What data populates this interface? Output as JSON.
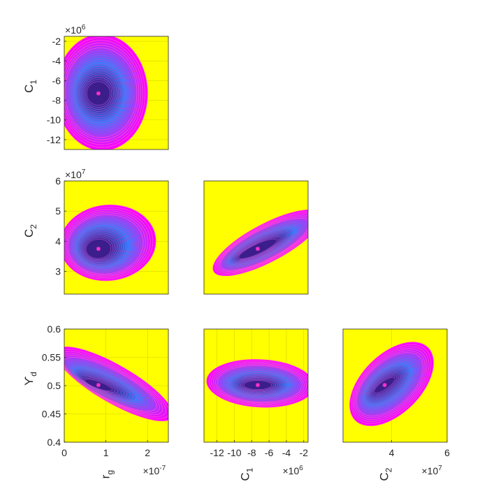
{
  "chart_data": {
    "type": "contour",
    "colors": {
      "background": "#ffff00",
      "outer": "#ff00ff",
      "inner": "#3b1e8c",
      "mid": "#3b7bff",
      "marker": "#ff33cc"
    },
    "variables": {
      "rg": {
        "base": "r",
        "sub": "g",
        "exp_base": "×10",
        "exp_pow": "-7"
      },
      "C1": {
        "base": "C",
        "sub": "1",
        "exp_base": "×10",
        "exp_pow": "6"
      },
      "C2": {
        "base": "C",
        "sub": "2",
        "exp_base": "×10",
        "exp_pow": "7"
      },
      "Yd": {
        "base": "ϒ",
        "sub": "d",
        "exp_base": "",
        "exp_pow": ""
      }
    },
    "panels": [
      {
        "row": 0,
        "col": 0,
        "xvar": "rg",
        "yvar": "C1",
        "xlim": [
          0,
          2.5
        ],
        "ylim": [
          -13,
          -1.5
        ],
        "xticks": [],
        "yticks": [
          -12,
          -10,
          -8,
          -6,
          -4,
          -2
        ],
        "show_xlabel": false,
        "show_ylabel": true,
        "show_xexp": false,
        "show_yexp": true,
        "best": [
          0.82,
          -7.3
        ],
        "region": {
          "cx": 0.9,
          "cy": -7.2,
          "rx": 1.1,
          "ry": 5.9,
          "rot": -2
        },
        "core": {
          "cx": 0.82,
          "cy": -7.3,
          "rx": 0.28,
          "ry": 1.2,
          "rot": 0
        }
      },
      {
        "row": 1,
        "col": 0,
        "xvar": "rg",
        "yvar": "C2",
        "xlim": [
          0,
          2.5
        ],
        "ylim": [
          22.5,
          60
        ],
        "xticks": [],
        "yticks": [
          30,
          40,
          50,
          60
        ],
        "yticklabels": [
          "3",
          "4",
          "5",
          "6"
        ],
        "show_xlabel": false,
        "show_ylabel": true,
        "show_xexp": false,
        "show_yexp": true,
        "best": [
          0.82,
          37.5
        ],
        "region": {
          "cx": 1.05,
          "cy": 39.5,
          "rx": 1.15,
          "ry": 12.5,
          "rot": -6
        },
        "core": {
          "cx": 0.82,
          "cy": 37.5,
          "rx": 0.3,
          "ry": 3.2,
          "rot": -5
        }
      },
      {
        "row": 1,
        "col": 1,
        "xvar": "C1",
        "yvar": "C2",
        "xlim": [
          -13.5,
          -1.5
        ],
        "ylim": [
          22.5,
          60
        ],
        "xticks": [],
        "yticks": [],
        "show_xlabel": false,
        "show_ylabel": false,
        "show_xexp": false,
        "show_yexp": false,
        "best": [
          -7.3,
          37.5
        ],
        "region": {
          "cx": -6.2,
          "cy": 39.5,
          "rx": 7.0,
          "ry": 6.2,
          "rot": -28
        },
        "core": {
          "cx": -7.3,
          "cy": 37.5,
          "rx": 2.4,
          "ry": 1.6,
          "rot": -25
        }
      },
      {
        "row": 2,
        "col": 0,
        "xvar": "rg",
        "yvar": "Yd",
        "xlim": [
          0,
          2.5
        ],
        "ylim": [
          0.4,
          0.6
        ],
        "xticks": [
          0,
          1,
          2
        ],
        "yticks": [
          0.4,
          0.45,
          0.5,
          0.55,
          0.6
        ],
        "yticklabels": [
          "0.4",
          "0.45",
          "0.5",
          "0.55",
          "0.6"
        ],
        "show_xlabel": true,
        "show_ylabel": true,
        "show_xexp": true,
        "show_yexp": false,
        "best": [
          0.82,
          0.501
        ],
        "region": {
          "cx": 1.2,
          "cy": 0.503,
          "rx": 1.6,
          "ry": 0.033,
          "rot": 30
        },
        "core": {
          "cx": 0.82,
          "cy": 0.501,
          "rx": 0.35,
          "ry": 0.006,
          "rot": 20
        }
      },
      {
        "row": 2,
        "col": 1,
        "xvar": "C1",
        "yvar": "Yd",
        "xlim": [
          -13.5,
          -1.5
        ],
        "ylim": [
          0.4,
          0.6
        ],
        "xticks": [
          -12,
          -10,
          -8,
          -6,
          -4,
          -2
        ],
        "yticks": [],
        "show_xlabel": true,
        "show_ylabel": false,
        "show_xexp": true,
        "show_yexp": false,
        "best": [
          -7.3,
          0.501
        ],
        "region": {
          "cx": -7.0,
          "cy": 0.504,
          "rx": 6.2,
          "ry": 0.042,
          "rot": 3
        },
        "core": {
          "cx": -7.3,
          "cy": 0.501,
          "rx": 1.6,
          "ry": 0.008,
          "rot": 0
        }
      },
      {
        "row": 2,
        "col": 2,
        "xvar": "C2",
        "yvar": "Yd",
        "xlim": [
          22.5,
          60
        ],
        "ylim": [
          0.4,
          0.6
        ],
        "xticks": [
          40,
          60
        ],
        "xticklabels": [
          "4",
          "6"
        ],
        "yticks": [],
        "show_xlabel": true,
        "show_ylabel": false,
        "show_xexp": true,
        "show_yexp": false,
        "best": [
          37.5,
          0.501
        ],
        "region": {
          "cx": 40,
          "cy": 0.503,
          "rx": 18.5,
          "ry": 0.052,
          "rot": -45
        },
        "core": {
          "cx": 37.5,
          "cy": 0.501,
          "rx": 4.5,
          "ry": 0.007,
          "rot": -35
        }
      }
    ]
  }
}
